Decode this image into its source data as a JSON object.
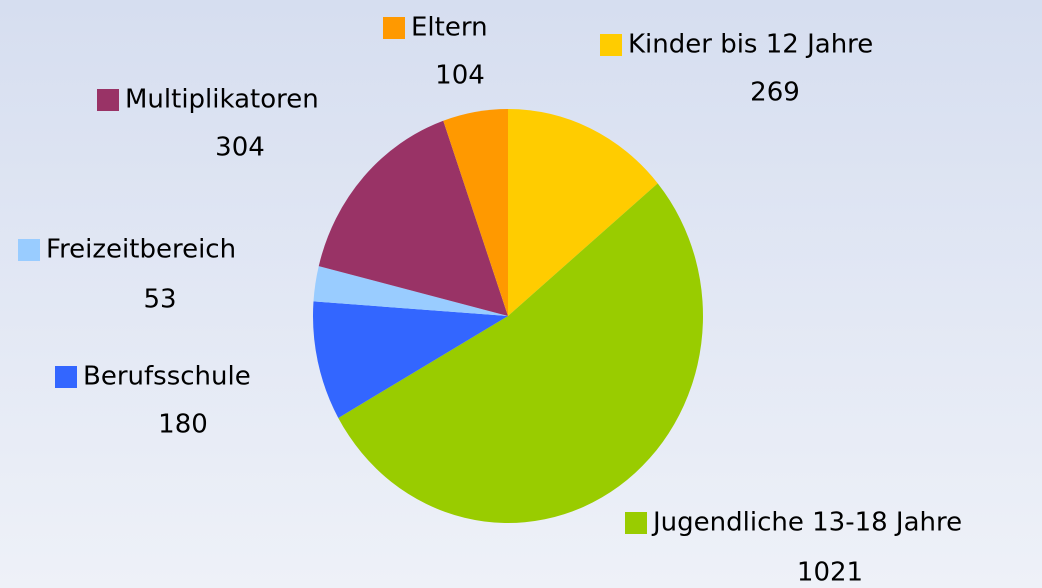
{
  "chart_data": {
    "type": "pie",
    "categories": [
      "Kinder bis 12 Jahre",
      "Jugendliche 13-18 Jahre",
      "Berufsschule",
      "Freizeitbereich",
      "Multiplikatoren",
      "Eltern"
    ],
    "values": [
      269,
      1021,
      180,
      53,
      304,
      104
    ],
    "colors": [
      "#ffcc00",
      "#99cc00",
      "#3366ff",
      "#99ccff",
      "#993366",
      "#ff9900"
    ]
  }
}
